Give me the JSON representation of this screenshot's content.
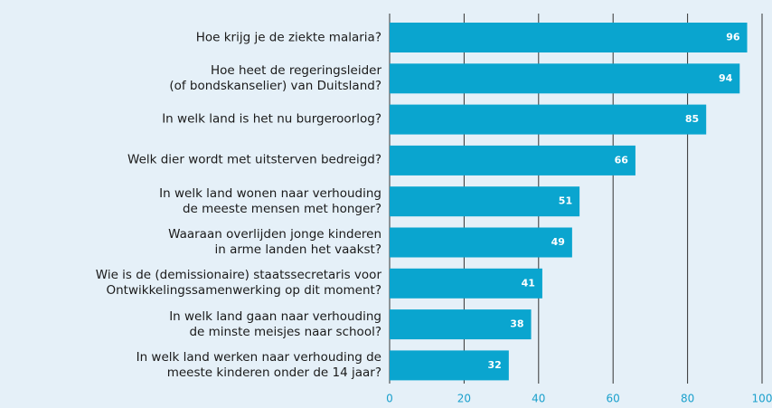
{
  "chart_data": {
    "type": "bar",
    "orientation": "horizontal",
    "categories": [
      "Hoe krijg je de ziekte malaria?",
      "Hoe heet de regeringsleider\n(of bondskanselier) van Duitsland?",
      "In welk land is het nu burgeroorlog?",
      "Welk dier wordt met uitsterven bedreigd?",
      "In welk land wonen naar verhouding\nde meeste mensen met honger?",
      "Waaraan overlijden jonge kinderen\nin arme landen het vaakst?",
      "Wie is de (demissionaire) staatssecretaris voor\nOntwikkelingssamenwerking op dit moment?",
      "In welk land gaan naar verhouding\nde minste meisjes naar school?",
      "In welk land werken naar verhouding de\nmeeste kinderen onder de 14 jaar?"
    ],
    "values": [
      96,
      94,
      85,
      66,
      51,
      49,
      41,
      38,
      32
    ],
    "color": "#0aa5cf",
    "xlim": [
      0,
      100
    ],
    "xticks": [
      0,
      20,
      40,
      60,
      80,
      100
    ],
    "grid": true
  }
}
